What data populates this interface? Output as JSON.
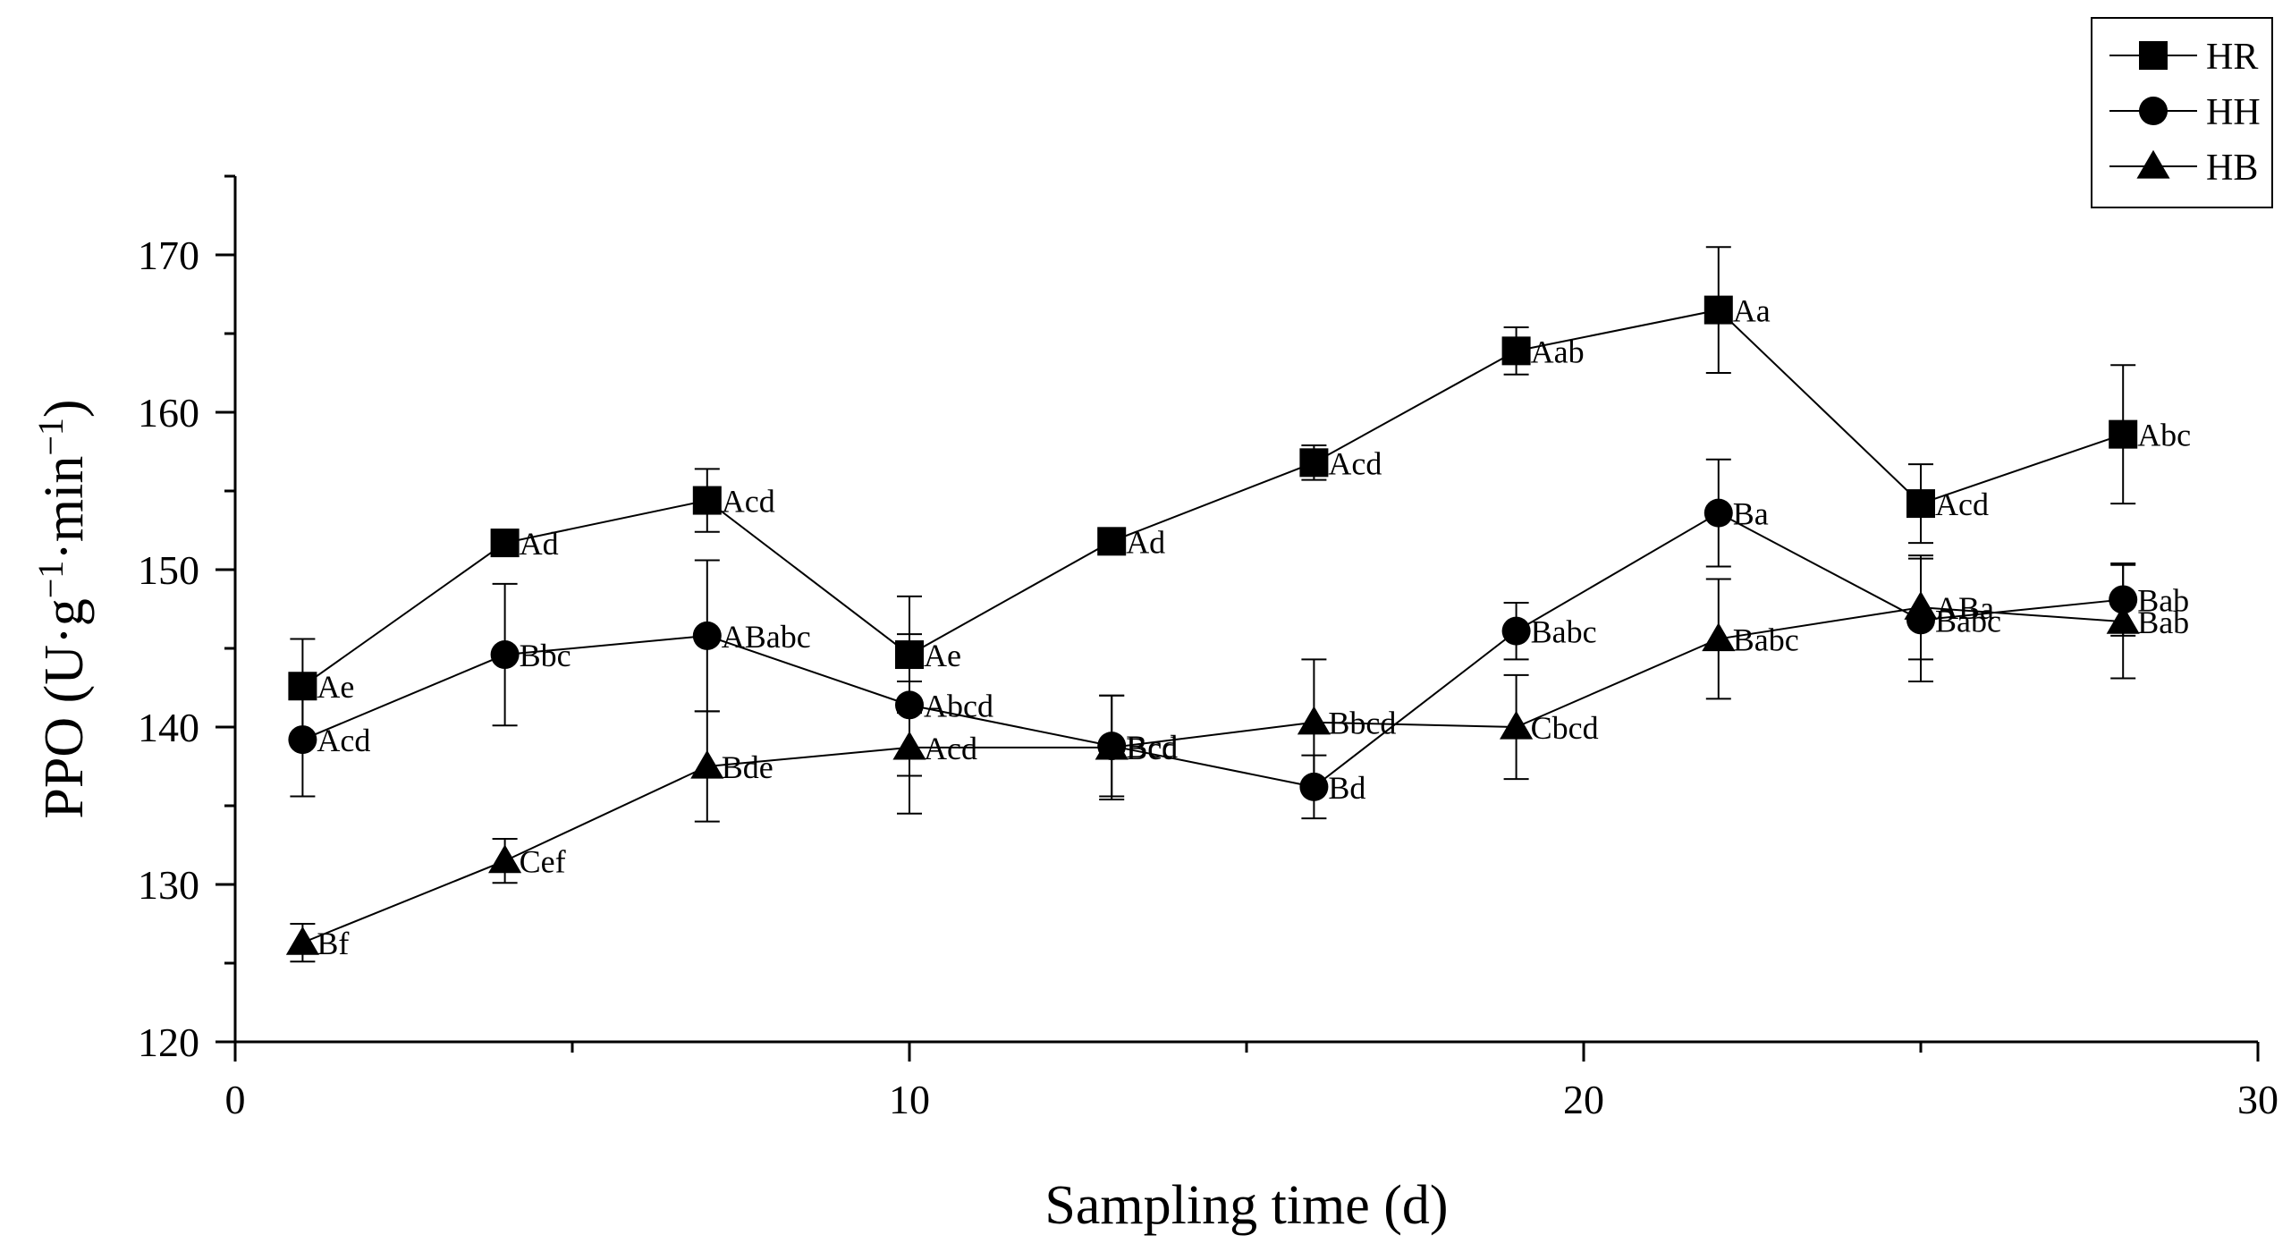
{
  "chart_data": {
    "type": "line",
    "title": "",
    "xlabel": "Sampling time (d)",
    "ylabel": {
      "base": "PPO (U·g",
      "sup1": "−1",
      "mid": "·min",
      "sup2": "−1",
      "end": ")"
    },
    "xlim": [
      0,
      30
    ],
    "ylim": [
      120,
      175
    ],
    "x_ticks": [
      0,
      10,
      20,
      30
    ],
    "x_tick_labels": [
      "0",
      "10",
      "20",
      "30"
    ],
    "x_minor_ticks": [
      5,
      15,
      25
    ],
    "y_ticks": [
      120,
      130,
      140,
      150,
      160,
      170
    ],
    "y_tick_labels": [
      "120",
      "130",
      "140",
      "150",
      "160",
      "170"
    ],
    "y_minor_ticks": [
      125,
      135,
      145,
      155,
      165,
      175
    ],
    "grid": false,
    "legend_position": "top-right",
    "x": [
      1,
      4,
      7,
      10,
      13,
      16,
      19,
      22,
      25,
      28
    ],
    "series": [
      {
        "name": "HR",
        "marker": "square",
        "values": [
          142.6,
          151.7,
          154.4,
          144.6,
          151.8,
          156.8,
          163.9,
          166.5,
          154.2,
          158.6
        ],
        "errors": [
          3.0,
          0.5,
          2.0,
          3.7,
          0.5,
          1.1,
          1.5,
          4.0,
          2.5,
          4.4
        ],
        "labels": [
          "Ae",
          "Ad",
          "Acd",
          "Ae",
          "Ad",
          "Acd",
          "Aab",
          "Aa",
          "Acd",
          "Abc"
        ]
      },
      {
        "name": "HH",
        "marker": "circle",
        "values": [
          139.2,
          144.6,
          145.8,
          141.4,
          138.8,
          136.2,
          146.1,
          153.6,
          146.8,
          148.1
        ],
        "errors": [
          3.6,
          4.5,
          4.8,
          4.5,
          3.2,
          2.0,
          1.8,
          3.4,
          3.9,
          2.3
        ],
        "labels": [
          "Acd",
          "Bbc",
          "ABabc",
          "Abcd",
          "Bcd",
          "Bd",
          "Babc",
          "Ba",
          "Babc",
          "Bab"
        ]
      },
      {
        "name": "HB",
        "marker": "triangle",
        "values": [
          126.3,
          131.5,
          137.5,
          138.7,
          138.7,
          140.3,
          140.0,
          145.6,
          147.6,
          146.7
        ],
        "errors": [
          1.2,
          1.4,
          3.5,
          4.2,
          3.3,
          4.0,
          3.3,
          3.8,
          3.3,
          3.6
        ],
        "labels": [
          "Bf",
          "Cef",
          "Bde",
          "Acd",
          "Bcd",
          "Bbcd",
          "Cbcd",
          "Babc",
          "ABa",
          "Bab"
        ]
      }
    ]
  }
}
